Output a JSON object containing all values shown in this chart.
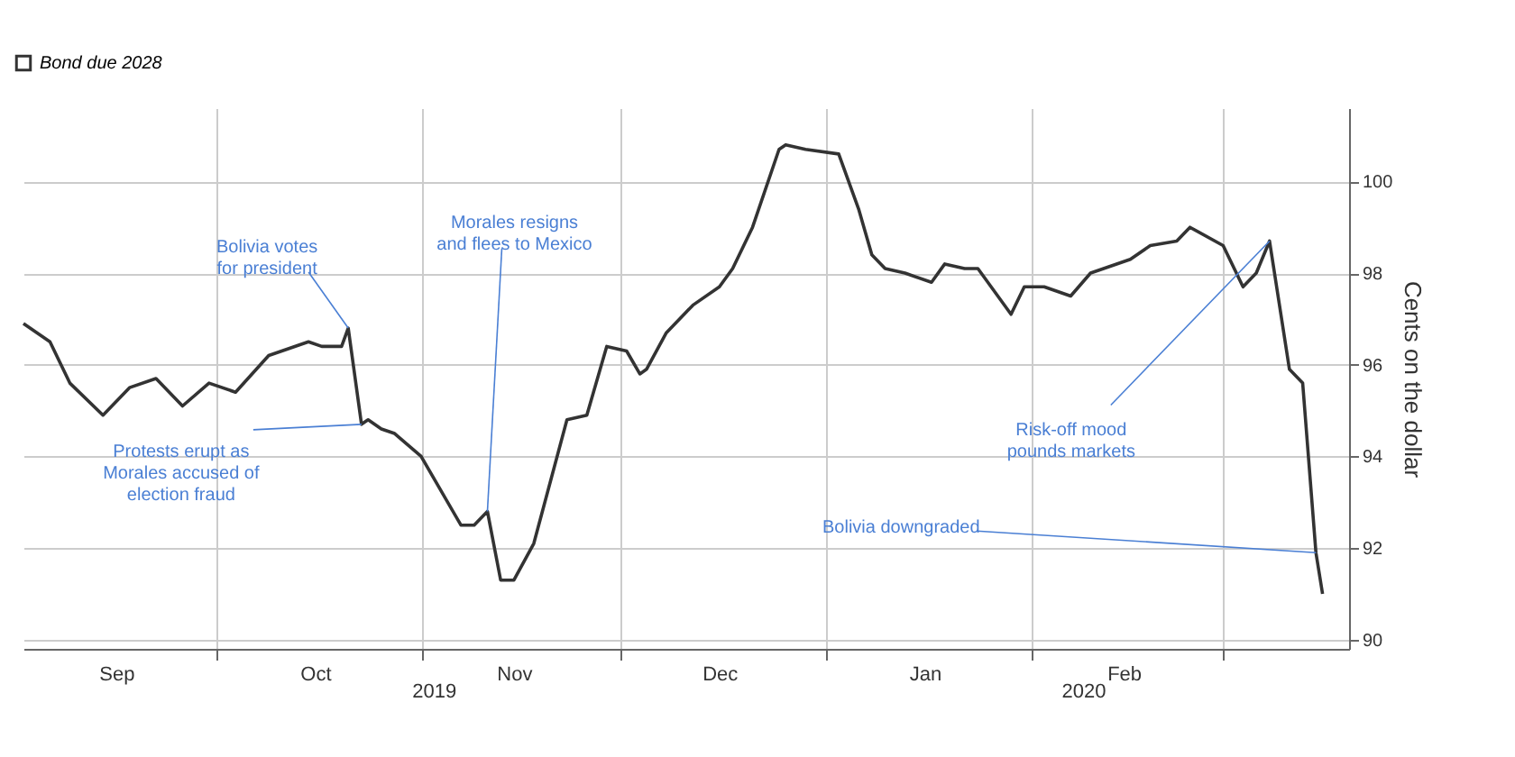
{
  "chart_data": {
    "type": "line",
    "x": [
      "2019-09-02",
      "2019-09-06",
      "2019-09-09",
      "2019-09-14",
      "2019-09-18",
      "2019-09-22",
      "2019-09-26",
      "2019-09-30",
      "2019-10-04",
      "2019-10-09",
      "2019-10-15",
      "2019-10-17",
      "2019-10-20",
      "2019-10-21",
      "2019-10-23",
      "2019-10-24",
      "2019-10-26",
      "2019-10-28",
      "2019-11-01",
      "2019-11-07",
      "2019-11-09",
      "2019-11-11",
      "2019-11-13",
      "2019-11-15",
      "2019-11-18",
      "2019-11-23",
      "2019-11-26",
      "2019-11-29",
      "2019-12-02",
      "2019-12-04",
      "2019-12-05",
      "2019-12-08",
      "2019-12-12",
      "2019-12-16",
      "2019-12-18",
      "2019-12-21",
      "2019-12-25",
      "2019-12-26",
      "2019-12-29",
      "2020-01-03",
      "2020-01-06",
      "2020-01-08",
      "2020-01-10",
      "2020-01-13",
      "2020-01-17",
      "2020-01-19",
      "2020-01-22",
      "2020-01-24",
      "2020-01-29",
      "2020-01-31",
      "2020-02-03",
      "2020-02-07",
      "2020-02-10",
      "2020-02-16",
      "2020-02-19",
      "2020-02-23",
      "2020-02-25",
      "2020-03-01",
      "2020-03-04",
      "2020-03-06",
      "2020-03-08",
      "2020-03-11",
      "2020-03-13",
      "2020-03-15",
      "2020-03-16"
    ],
    "series": [
      {
        "name": "Bond due 2028",
        "color": "#333333",
        "values": [
          96.9,
          96.5,
          95.6,
          94.9,
          95.5,
          95.7,
          95.1,
          95.6,
          95.4,
          96.2,
          96.5,
          96.4,
          96.4,
          96.8,
          94.7,
          94.8,
          94.6,
          94.5,
          94.0,
          92.5,
          92.5,
          92.8,
          91.3,
          91.3,
          92.1,
          94.8,
          94.9,
          96.4,
          96.3,
          95.8,
          95.9,
          96.7,
          97.3,
          97.7,
          98.1,
          99.0,
          100.7,
          100.8,
          100.7,
          100.6,
          99.4,
          98.4,
          98.1,
          98.0,
          97.8,
          98.2,
          98.1,
          98.1,
          97.1,
          97.7,
          97.7,
          97.5,
          98.0,
          98.3,
          98.6,
          98.7,
          99.0,
          98.6,
          97.7,
          98.0,
          98.7,
          95.9,
          95.6,
          91.9,
          91.0
        ]
      }
    ],
    "ylabel": "Cents on the dollar",
    "xlim": [
      "2019-09-02",
      "2020-03-20"
    ],
    "xticks": [
      {
        "value": "2019-09-16",
        "label": "Sep"
      },
      {
        "value": "2019-10-01",
        "label": null
      },
      {
        "value": "2019-10-16",
        "label": "Oct"
      },
      {
        "value": "2019-11-01",
        "label": null
      },
      {
        "value": "2019-11-15",
        "label": "Nov"
      },
      {
        "value": "2019-12-01",
        "label": null
      },
      {
        "value": "2019-12-16",
        "label": "Dec"
      },
      {
        "value": "2020-01-01",
        "label": null
      },
      {
        "value": "2020-01-16",
        "label": "Jan"
      },
      {
        "value": "2020-02-01",
        "label": null
      },
      {
        "value": "2020-02-15",
        "label": "Feb"
      },
      {
        "value": "2020-03-01",
        "label": null
      }
    ],
    "ylim": [
      89.8,
      101.6
    ],
    "yticks": [
      90,
      92,
      94,
      96,
      98,
      100
    ],
    "grid": true,
    "legend": "top left",
    "annotations": [
      {
        "text": "Bolivia votes\nfor president",
        "x": "2019-10-21",
        "y": 96.8
      },
      {
        "text": "Protests erupt as\nMorales accused of\nelection fraud",
        "x": "2019-10-23",
        "y": 94.7
      },
      {
        "text": "Morales resigns\nand flees to Mexico",
        "x": "2019-11-11",
        "y": 92.8
      },
      {
        "text": "Risk-off mood\npounds markets",
        "x": "2020-03-08",
        "y": 98.7
      },
      {
        "text": "Bolivia downgraded",
        "x": "2020-03-15",
        "y": 91.9
      },
      "2019",
      "2020"
    ]
  }
}
